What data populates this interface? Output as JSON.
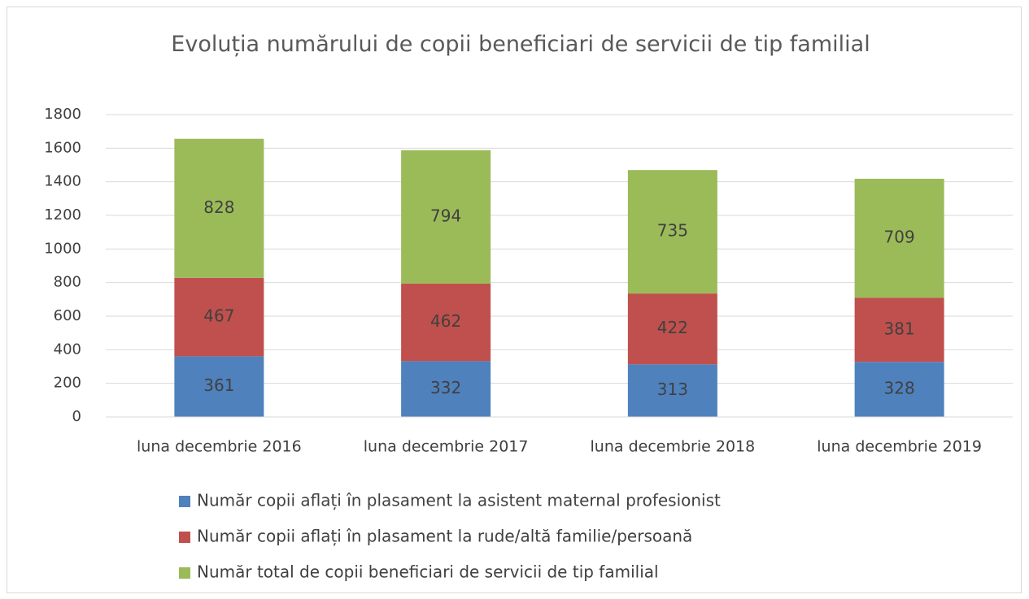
{
  "chart_data": {
    "type": "stacked_bar",
    "title": "Evoluția numărului de copii beneficiari de servicii de tip familial",
    "categories": [
      "luna decembrie 2016",
      "luna decembrie 2017",
      "luna decembrie 2018",
      "luna decembrie 2019"
    ],
    "series": [
      {
        "name": "Număr copii aflați în plasament la asistent maternal profesionist",
        "color": "#4f81bd",
        "values": [
          361,
          332,
          313,
          328
        ]
      },
      {
        "name": "Număr copii aflați în plasament la rude/altă familie/persoană",
        "color": "#c0504d",
        "values": [
          467,
          462,
          422,
          381
        ]
      },
      {
        "name": "Număr total de copii beneficiari de servicii de tip familial",
        "color": "#9bbb59",
        "values": [
          828,
          794,
          735,
          709
        ]
      }
    ],
    "ylim": [
      0,
      1800
    ],
    "yticks": [
      0,
      200,
      400,
      600,
      800,
      1000,
      1200,
      1400,
      1600,
      1800
    ],
    "grid": true,
    "legend": "bottom"
  }
}
